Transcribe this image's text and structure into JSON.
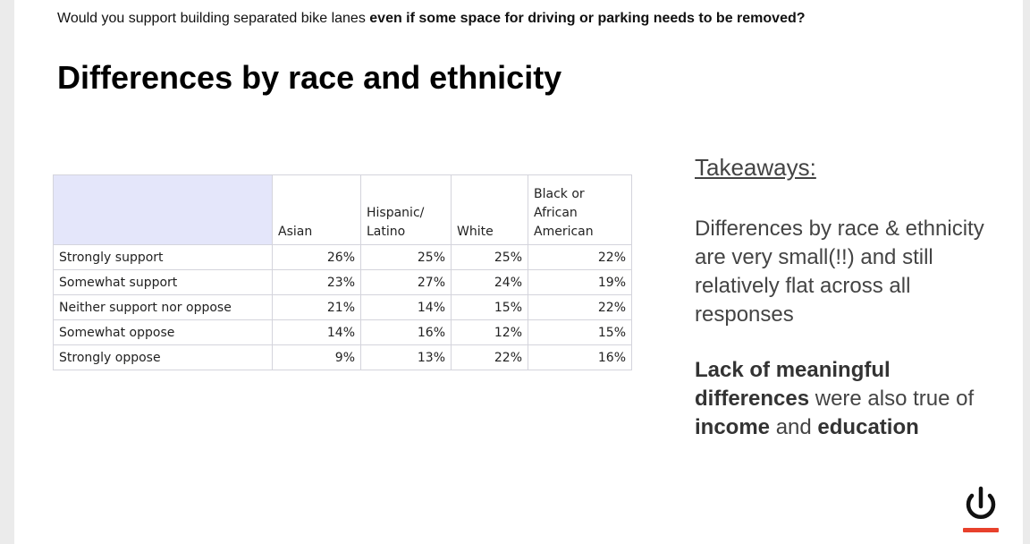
{
  "question": {
    "part1": "Would you support building separated bike lanes ",
    "part2_bold": "even if some space for driving or parking needs to be removed?"
  },
  "title": "Differences by race and ethnicity",
  "table": {
    "headers": [
      [
        "Asian"
      ],
      [
        "Hispanic/",
        "Latino"
      ],
      [
        "White"
      ],
      [
        "Black or",
        "African",
        "American"
      ]
    ],
    "rows": [
      {
        "label": "Strongly support",
        "values": [
          "26%",
          "25%",
          "25%",
          "22%"
        ]
      },
      {
        "label": "Somewhat support",
        "values": [
          "23%",
          "27%",
          "24%",
          "19%"
        ]
      },
      {
        "label": "Neither support nor oppose",
        "values": [
          "21%",
          "14%",
          "15%",
          "22%"
        ]
      },
      {
        "label": "Somewhat oppose",
        "values": [
          "14%",
          "16%",
          "12%",
          "15%"
        ]
      },
      {
        "label": "Strongly oppose",
        "values": [
          "9%",
          "13%",
          "22%",
          "16%"
        ]
      }
    ]
  },
  "takeaways": {
    "heading": "Takeaways:",
    "point1": "Differences by race & ethnicity are very small(!!) and still relatively flat across all responses",
    "point2": {
      "b1": "Lack of meaningful differences",
      "t1": " were also true of ",
      "b2": "income",
      "t2": " and ",
      "b3": "education"
    }
  },
  "icons": {
    "logo": "power-icon"
  },
  "colors": {
    "header_fill": "#e4e6fa",
    "logo_red": "#e8412c",
    "text_dark": "#000000",
    "text_gray": "#444444"
  }
}
